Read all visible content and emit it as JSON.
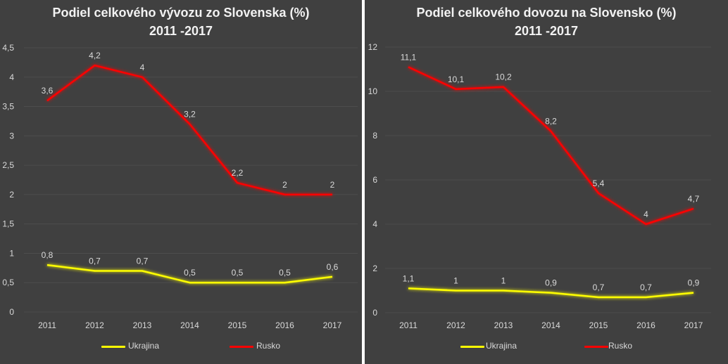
{
  "colors": {
    "background": "#404040",
    "gridline": "#4d4d4d",
    "axis_text": "#d9d9d9",
    "ukrajina": "#ffff00",
    "rusko": "#ff0000"
  },
  "chart_data": [
    {
      "type": "line",
      "title": "Podiel celkového vývozu zo Slovenska (%)",
      "subtitle": "2011 -2017",
      "categories": [
        "2011",
        "2012",
        "2013",
        "2014",
        "2015",
        "2016",
        "2017"
      ],
      "ylim": [
        0,
        4.5
      ],
      "yticks": [
        "0",
        "0,5",
        "1",
        "1,5",
        "2",
        "2,5",
        "3",
        "3,5",
        "4",
        "4,5"
      ],
      "grid": true,
      "legend": "bottom",
      "series": [
        {
          "name": "Ukrajina",
          "values": [
            0.8,
            0.7,
            0.7,
            0.5,
            0.5,
            0.5,
            0.6
          ],
          "labels": [
            "0,8",
            "0,7",
            "0,7",
            "0,5",
            "0,5",
            "0,5",
            "0,6"
          ]
        },
        {
          "name": "Rusko",
          "values": [
            3.6,
            4.2,
            4.0,
            3.2,
            2.2,
            2.0,
            2.0
          ],
          "labels": [
            "3,6",
            "4,2",
            "4",
            "3,2",
            "2,2",
            "2",
            "2"
          ]
        }
      ]
    },
    {
      "type": "line",
      "title": "Podiel celkového dovozu na Slovensko (%)",
      "subtitle": "2011 -2017",
      "categories": [
        "2011",
        "2012",
        "2013",
        "2014",
        "2015",
        "2016",
        "2017"
      ],
      "ylim": [
        0,
        12
      ],
      "yticks": [
        "0",
        "2",
        "4",
        "6",
        "8",
        "10",
        "12"
      ],
      "grid": true,
      "legend": "bottom",
      "series": [
        {
          "name": "Ukrajina",
          "values": [
            1.1,
            1.0,
            1.0,
            0.9,
            0.7,
            0.7,
            0.9
          ],
          "labels": [
            "1,1",
            "1",
            "1",
            "0,9",
            "0,7",
            "0,7",
            "0,9"
          ]
        },
        {
          "name": "Rusko",
          "values": [
            11.1,
            10.1,
            10.2,
            8.2,
            5.4,
            4.0,
            4.7
          ],
          "labels": [
            "11,1",
            "10,1",
            "10,2",
            "8,2",
            "5,4",
            "4",
            "4,7"
          ]
        }
      ]
    }
  ]
}
